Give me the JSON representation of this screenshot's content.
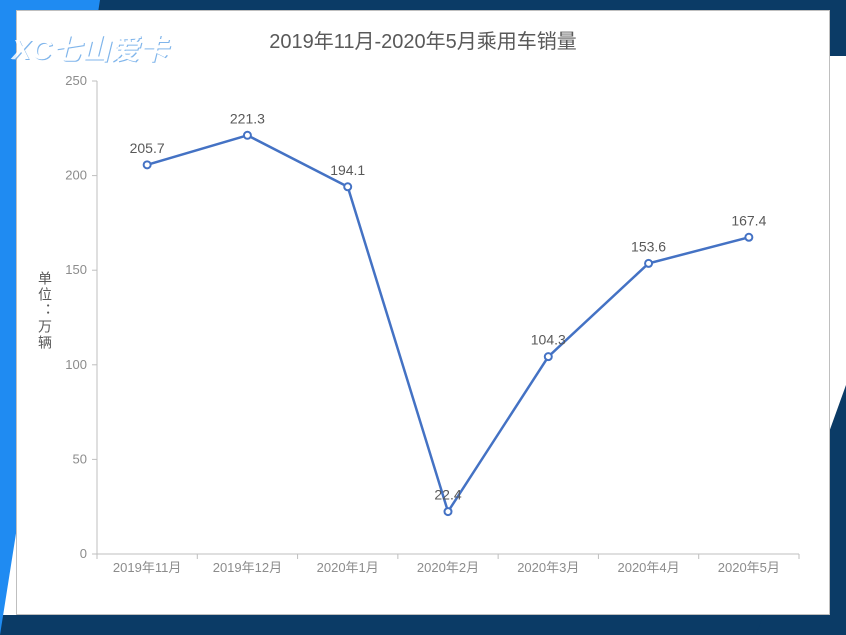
{
  "frame": {
    "top_band_color": "#0b3b66",
    "left_triangle_color": "#1f8bf2",
    "right_triangle_color": "#0b3b66",
    "bottom_band_color": "#0b3b66",
    "card_bg": "#ffffff",
    "card_border": "#bfbfbf"
  },
  "watermark": {
    "text": "XC七山爱卡",
    "color": "#ffffff",
    "opacity": 0.85
  },
  "chart": {
    "type": "line",
    "title": "2019年11月-2020年5月乘用车销量",
    "title_color": "#595959",
    "title_fontsize": 20,
    "y_axis_label": "单位：万辆",
    "categories": [
      "2019年11月",
      "2019年12月",
      "2020年1月",
      "2020年2月",
      "2020年3月",
      "2020年4月",
      "2020年5月"
    ],
    "values": [
      205.7,
      221.3,
      194.1,
      22.4,
      104.3,
      153.6,
      167.4
    ],
    "data_labels": [
      "205.7",
      "221.3",
      "194.1",
      "22.4",
      "104.3",
      "153.6",
      "167.4"
    ],
    "line_color": "#4472c4",
    "marker_color": "#4472c4",
    "marker_fill": "#4472c4",
    "line_width": 2.5,
    "marker_radius": 3.5,
    "ylim": [
      0,
      250
    ],
    "yticks": [
      0,
      50,
      100,
      150,
      200,
      250
    ],
    "axis_color": "#bfbfbf",
    "tick_label_color": "#8c8c8c",
    "data_label_color": "#595959",
    "background_color": "#ffffff"
  }
}
